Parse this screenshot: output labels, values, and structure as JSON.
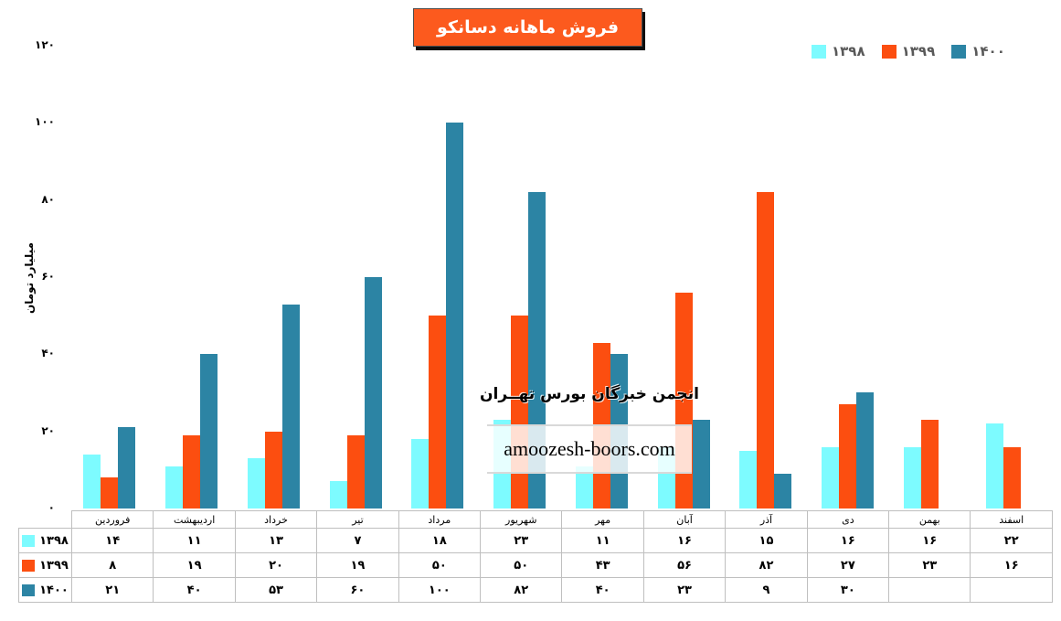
{
  "title": "فروش ماهانه دسانکو",
  "y_axis": {
    "title": "میلیارد تومان",
    "ticks": [
      {
        "value": 0,
        "label": "۰"
      },
      {
        "value": 20,
        "label": "۲۰"
      },
      {
        "value": 40,
        "label": "۴۰"
      },
      {
        "value": 60,
        "label": "۶۰"
      },
      {
        "value": 80,
        "label": "۸۰"
      },
      {
        "value": 100,
        "label": "۱۰۰"
      },
      {
        "value": 120,
        "label": "۱۲۰"
      }
    ]
  },
  "legend": {
    "position": "top-right",
    "items": [
      {
        "label": "۱۳۹۸",
        "color": "#7DFBFF"
      },
      {
        "label": "۱۳۹۹",
        "color": "#FC4E10"
      },
      {
        "label": "۱۴۰۰",
        "color": "#2C84A4"
      }
    ]
  },
  "watermark": {
    "heading": "انجمن خبرگان بورس تهــران",
    "site": "amoozesh-boors.com"
  },
  "chart_data": {
    "type": "bar",
    "title": "فروش ماهانه دسانکو",
    "ylabel": "میلیارد تومان",
    "ylim": [
      0,
      120
    ],
    "grid": false,
    "legend_position": "top-right",
    "categories": [
      "فروردین",
      "اردیبهشت",
      "خرداد",
      "تیر",
      "مرداد",
      "شهریور",
      "مهر",
      "آبان",
      "آذر",
      "دی",
      "بهمن",
      "اسفند"
    ],
    "series": [
      {
        "name": "۱۳۹۸",
        "color": "#7DFBFF",
        "values": [
          14,
          11,
          13,
          7,
          18,
          23,
          11,
          16,
          15,
          16,
          16,
          22
        ],
        "labels": [
          "۱۴",
          "۱۱",
          "۱۳",
          "۷",
          "۱۸",
          "۲۳",
          "۱۱",
          "۱۶",
          "۱۵",
          "۱۶",
          "۱۶",
          "۲۲"
        ]
      },
      {
        "name": "۱۳۹۹",
        "color": "#FC4E10",
        "values": [
          8,
          19,
          20,
          19,
          50,
          50,
          43,
          56,
          82,
          27,
          23,
          16
        ],
        "labels": [
          "۸",
          "۱۹",
          "۲۰",
          "۱۹",
          "۵۰",
          "۵۰",
          "۴۳",
          "۵۶",
          "۸۲",
          "۲۷",
          "۲۳",
          "۱۶"
        ]
      },
      {
        "name": "۱۴۰۰",
        "color": "#2C84A4",
        "values": [
          21,
          40,
          53,
          60,
          100,
          82,
          40,
          23,
          9,
          30,
          null,
          null
        ],
        "labels": [
          "۲۱",
          "۴۰",
          "۵۳",
          "۶۰",
          "۱۰۰",
          "۸۲",
          "۴۰",
          "۲۳",
          "۹",
          "۳۰",
          "",
          ""
        ]
      }
    ]
  }
}
